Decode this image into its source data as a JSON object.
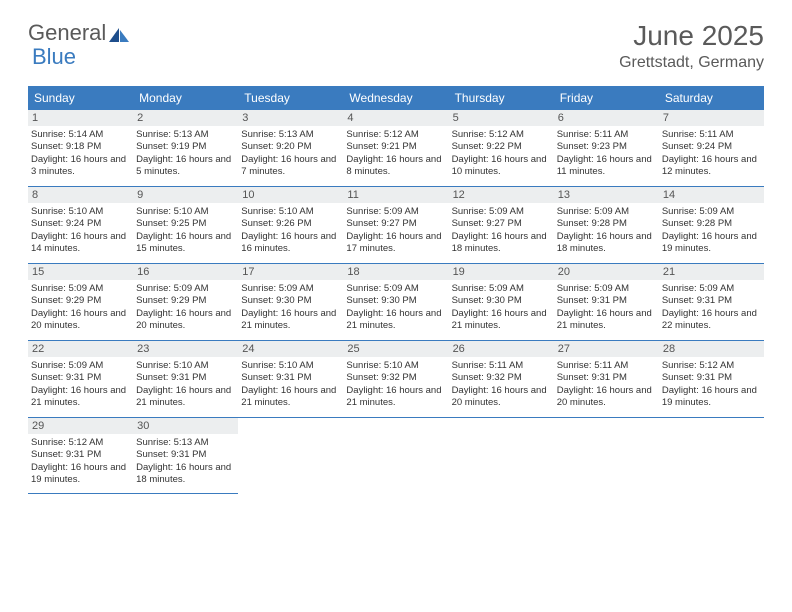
{
  "logo": {
    "text_general": "General",
    "text_blue": "Blue"
  },
  "title": "June 2025",
  "location": "Grettstadt, Germany",
  "colors": {
    "header_bg": "#3a7bbf",
    "header_text": "#ffffff",
    "daynum_bg": "#eceeef",
    "border": "#3a7bbf",
    "text": "#333333",
    "title_text": "#5a5a5a"
  },
  "day_names": [
    "Sunday",
    "Monday",
    "Tuesday",
    "Wednesday",
    "Thursday",
    "Friday",
    "Saturday"
  ],
  "weeks": [
    [
      {
        "n": "1",
        "sr": "Sunrise: 5:14 AM",
        "ss": "Sunset: 9:18 PM",
        "dl": "Daylight: 16 hours and 3 minutes."
      },
      {
        "n": "2",
        "sr": "Sunrise: 5:13 AM",
        "ss": "Sunset: 9:19 PM",
        "dl": "Daylight: 16 hours and 5 minutes."
      },
      {
        "n": "3",
        "sr": "Sunrise: 5:13 AM",
        "ss": "Sunset: 9:20 PM",
        "dl": "Daylight: 16 hours and 7 minutes."
      },
      {
        "n": "4",
        "sr": "Sunrise: 5:12 AM",
        "ss": "Sunset: 9:21 PM",
        "dl": "Daylight: 16 hours and 8 minutes."
      },
      {
        "n": "5",
        "sr": "Sunrise: 5:12 AM",
        "ss": "Sunset: 9:22 PM",
        "dl": "Daylight: 16 hours and 10 minutes."
      },
      {
        "n": "6",
        "sr": "Sunrise: 5:11 AM",
        "ss": "Sunset: 9:23 PM",
        "dl": "Daylight: 16 hours and 11 minutes."
      },
      {
        "n": "7",
        "sr": "Sunrise: 5:11 AM",
        "ss": "Sunset: 9:24 PM",
        "dl": "Daylight: 16 hours and 12 minutes."
      }
    ],
    [
      {
        "n": "8",
        "sr": "Sunrise: 5:10 AM",
        "ss": "Sunset: 9:24 PM",
        "dl": "Daylight: 16 hours and 14 minutes."
      },
      {
        "n": "9",
        "sr": "Sunrise: 5:10 AM",
        "ss": "Sunset: 9:25 PM",
        "dl": "Daylight: 16 hours and 15 minutes."
      },
      {
        "n": "10",
        "sr": "Sunrise: 5:10 AM",
        "ss": "Sunset: 9:26 PM",
        "dl": "Daylight: 16 hours and 16 minutes."
      },
      {
        "n": "11",
        "sr": "Sunrise: 5:09 AM",
        "ss": "Sunset: 9:27 PM",
        "dl": "Daylight: 16 hours and 17 minutes."
      },
      {
        "n": "12",
        "sr": "Sunrise: 5:09 AM",
        "ss": "Sunset: 9:27 PM",
        "dl": "Daylight: 16 hours and 18 minutes."
      },
      {
        "n": "13",
        "sr": "Sunrise: 5:09 AM",
        "ss": "Sunset: 9:28 PM",
        "dl": "Daylight: 16 hours and 18 minutes."
      },
      {
        "n": "14",
        "sr": "Sunrise: 5:09 AM",
        "ss": "Sunset: 9:28 PM",
        "dl": "Daylight: 16 hours and 19 minutes."
      }
    ],
    [
      {
        "n": "15",
        "sr": "Sunrise: 5:09 AM",
        "ss": "Sunset: 9:29 PM",
        "dl": "Daylight: 16 hours and 20 minutes."
      },
      {
        "n": "16",
        "sr": "Sunrise: 5:09 AM",
        "ss": "Sunset: 9:29 PM",
        "dl": "Daylight: 16 hours and 20 minutes."
      },
      {
        "n": "17",
        "sr": "Sunrise: 5:09 AM",
        "ss": "Sunset: 9:30 PM",
        "dl": "Daylight: 16 hours and 21 minutes."
      },
      {
        "n": "18",
        "sr": "Sunrise: 5:09 AM",
        "ss": "Sunset: 9:30 PM",
        "dl": "Daylight: 16 hours and 21 minutes."
      },
      {
        "n": "19",
        "sr": "Sunrise: 5:09 AM",
        "ss": "Sunset: 9:30 PM",
        "dl": "Daylight: 16 hours and 21 minutes."
      },
      {
        "n": "20",
        "sr": "Sunrise: 5:09 AM",
        "ss": "Sunset: 9:31 PM",
        "dl": "Daylight: 16 hours and 21 minutes."
      },
      {
        "n": "21",
        "sr": "Sunrise: 5:09 AM",
        "ss": "Sunset: 9:31 PM",
        "dl": "Daylight: 16 hours and 22 minutes."
      }
    ],
    [
      {
        "n": "22",
        "sr": "Sunrise: 5:09 AM",
        "ss": "Sunset: 9:31 PM",
        "dl": "Daylight: 16 hours and 21 minutes."
      },
      {
        "n": "23",
        "sr": "Sunrise: 5:10 AM",
        "ss": "Sunset: 9:31 PM",
        "dl": "Daylight: 16 hours and 21 minutes."
      },
      {
        "n": "24",
        "sr": "Sunrise: 5:10 AM",
        "ss": "Sunset: 9:31 PM",
        "dl": "Daylight: 16 hours and 21 minutes."
      },
      {
        "n": "25",
        "sr": "Sunrise: 5:10 AM",
        "ss": "Sunset: 9:32 PM",
        "dl": "Daylight: 16 hours and 21 minutes."
      },
      {
        "n": "26",
        "sr": "Sunrise: 5:11 AM",
        "ss": "Sunset: 9:32 PM",
        "dl": "Daylight: 16 hours and 20 minutes."
      },
      {
        "n": "27",
        "sr": "Sunrise: 5:11 AM",
        "ss": "Sunset: 9:31 PM",
        "dl": "Daylight: 16 hours and 20 minutes."
      },
      {
        "n": "28",
        "sr": "Sunrise: 5:12 AM",
        "ss": "Sunset: 9:31 PM",
        "dl": "Daylight: 16 hours and 19 minutes."
      }
    ],
    [
      {
        "n": "29",
        "sr": "Sunrise: 5:12 AM",
        "ss": "Sunset: 9:31 PM",
        "dl": "Daylight: 16 hours and 19 minutes."
      },
      {
        "n": "30",
        "sr": "Sunrise: 5:13 AM",
        "ss": "Sunset: 9:31 PM",
        "dl": "Daylight: 16 hours and 18 minutes."
      },
      null,
      null,
      null,
      null,
      null
    ]
  ]
}
